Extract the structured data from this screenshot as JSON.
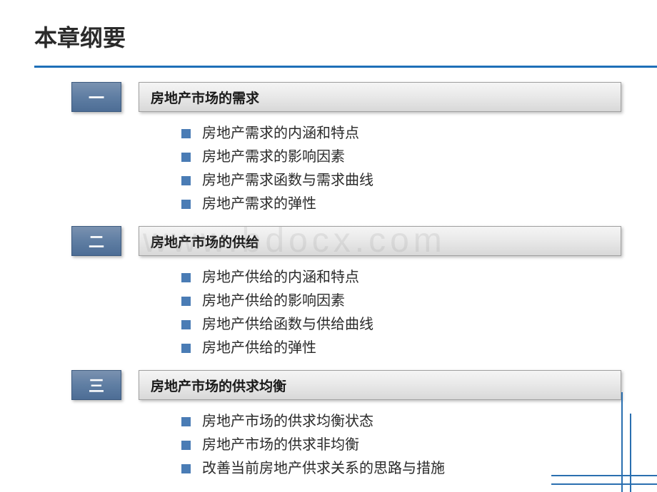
{
  "title": "本章纲要",
  "watermark": "www.bdocx.com",
  "colors": {
    "accent": "#1e6fb8",
    "numbox_bg": "#5f7ea3",
    "bullet": "#4a7cb5",
    "topic_bg": "#e8e8e8",
    "text": "#2a2a2a"
  },
  "sections": [
    {
      "num": "一",
      "topic": "房地产市场的需求",
      "bullets": [
        "房地产需求的内涵和特点",
        "房地产需求的影响因素",
        "房地产需求函数与需求曲线",
        "房地产需求的弹性"
      ]
    },
    {
      "num": "二",
      "topic": "房地产市场的供给",
      "bullets": [
        "房地产供给的内涵和特点",
        "房地产供给的影响因素",
        "房地产供给函数与供给曲线",
        "房地产供给的弹性"
      ]
    },
    {
      "num": "三",
      "topic": "房地产市场的供求均衡",
      "bullets": [
        "房地产市场的供求均衡状态",
        "房地产市场的供求非均衡",
        "改善当前房地产供求关系的思路与措施"
      ]
    }
  ]
}
